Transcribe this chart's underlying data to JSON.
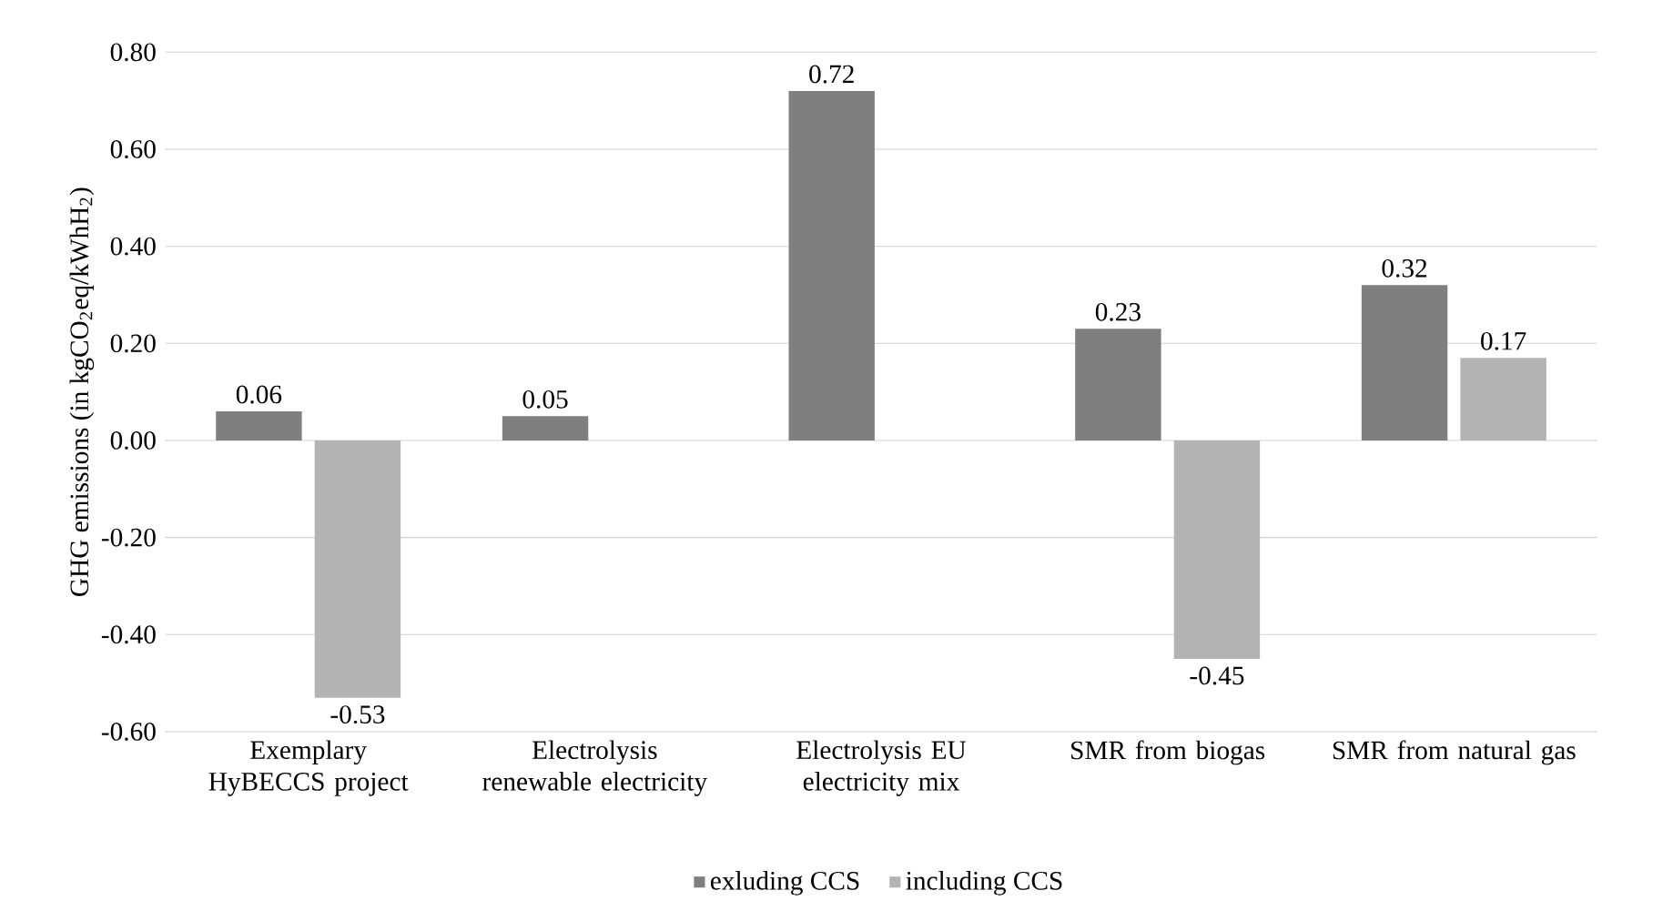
{
  "chart_data": {
    "type": "bar",
    "ylabel": "GHG emissions (in kgCO$_{2}$eq/kWhH$_{2}$)",
    "categories": [
      "Exemplary HyBECCS project",
      "Electrolysis renewable electricity",
      "Electrolysis EU electricity mix",
      "SMR from biogas",
      "SMR from natural gas"
    ],
    "series": [
      {
        "name": "exluding CCS",
        "color": "#7f7f7f",
        "values": [
          0.06,
          0.05,
          0.72,
          0.23,
          0.32
        ]
      },
      {
        "name": "including CCS",
        "color": "#b3b3b3",
        "values": [
          -0.53,
          null,
          null,
          -0.45,
          0.17
        ]
      }
    ],
    "ylim": [
      -0.6,
      0.8
    ],
    "yticks": [
      {
        "value": -0.6,
        "label": "-0.60"
      },
      {
        "value": -0.4,
        "label": "-0.40"
      },
      {
        "value": -0.2,
        "label": "-0.20"
      },
      {
        "value": 0,
        "label": "0.00"
      },
      {
        "value": 0.2,
        "label": "0.20"
      },
      {
        "value": 0.4,
        "label": "0.40"
      },
      {
        "value": 0.6,
        "label": "0.60"
      },
      {
        "value": 0.8,
        "label": "0.80"
      }
    ],
    "grid": "y",
    "legend": "bottom",
    "data_labels": true
  }
}
